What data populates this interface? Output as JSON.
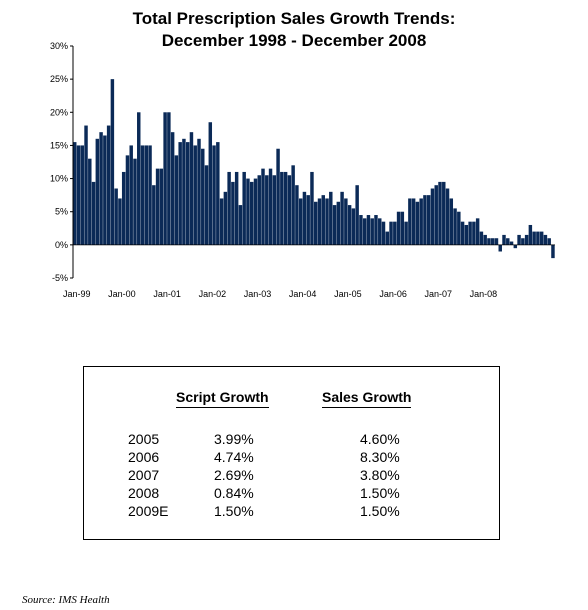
{
  "chart_data": {
    "type": "bar",
    "title": "Total Prescription Sales Growth Trends:",
    "subtitle": "December 1998 - December 2008",
    "xlabel": "",
    "ylabel": "",
    "ylim": [
      -5,
      30
    ],
    "y_ticks": [
      "30%",
      "25%",
      "20%",
      "15%",
      "10%",
      "5%",
      "0%",
      "-5%"
    ],
    "y_tick_values": [
      30,
      25,
      20,
      15,
      10,
      5,
      0,
      -5
    ],
    "x_ticks": [
      "Jan-99",
      "Jan-00",
      "Jan-01",
      "Jan-02",
      "Jan-03",
      "Jan-04",
      "Jan-05",
      "Jan-06",
      "Jan-07",
      "Jan-08"
    ],
    "grid": false,
    "bar_color": "#0b2a57",
    "x_start": "1998-12",
    "values": [
      15.5,
      15.0,
      15.0,
      18.0,
      13.0,
      9.5,
      16.0,
      17.0,
      16.5,
      18.0,
      25.0,
      8.5,
      7.0,
      11.0,
      13.5,
      15.0,
      13.0,
      20.0,
      15.0,
      15.0,
      15.0,
      9.0,
      11.5,
      11.5,
      20.0,
      20.0,
      17.0,
      13.5,
      15.5,
      16.0,
      15.5,
      17.0,
      15.0,
      16.0,
      14.5,
      12.0,
      18.5,
      15.0,
      15.5,
      7.0,
      8.0,
      11.0,
      9.5,
      11.0,
      6.0,
      11.0,
      10.0,
      9.5,
      10.0,
      10.5,
      11.5,
      10.5,
      11.5,
      10.5,
      14.5,
      11.0,
      11.0,
      10.5,
      12.0,
      9.0,
      7.0,
      8.0,
      7.5,
      11.0,
      6.5,
      7.0,
      7.5,
      7.0,
      8.0,
      6.0,
      6.5,
      8.0,
      7.0,
      6.0,
      5.5,
      9.0,
      4.5,
      4.0,
      4.5,
      4.0,
      4.5,
      4.0,
      3.5,
      2.0,
      3.5,
      3.5,
      5.0,
      5.0,
      3.5,
      7.0,
      7.0,
      6.5,
      7.0,
      7.5,
      7.5,
      8.5,
      9.0,
      9.5,
      9.5,
      8.5,
      7.0,
      5.5,
      5.0,
      3.5,
      3.0,
      3.5,
      3.5,
      4.0,
      2.0,
      1.5,
      1.0,
      1.0,
      1.0,
      -1.0,
      1.5,
      1.0,
      0.5,
      -0.5,
      1.5,
      1.0,
      1.5,
      3.0,
      2.0,
      2.0,
      2.0,
      1.5,
      1.0,
      -2.0
    ]
  },
  "table": {
    "headers": {
      "script": "Script Growth",
      "sales": "Sales Growth"
    },
    "rows": [
      {
        "year": "2005",
        "script": "3.99%",
        "sales": "4.60%"
      },
      {
        "year": "2006",
        "script": "4.74%",
        "sales": "8.30%"
      },
      {
        "year": "2007",
        "script": "2.69%",
        "sales": "3.80%"
      },
      {
        "year": "2008",
        "script": "0.84%",
        "sales": "1.50%"
      },
      {
        "year": "2009E",
        "script": "1.50%",
        "sales": "1.50%"
      }
    ]
  },
  "source": "Source: IMS Health"
}
